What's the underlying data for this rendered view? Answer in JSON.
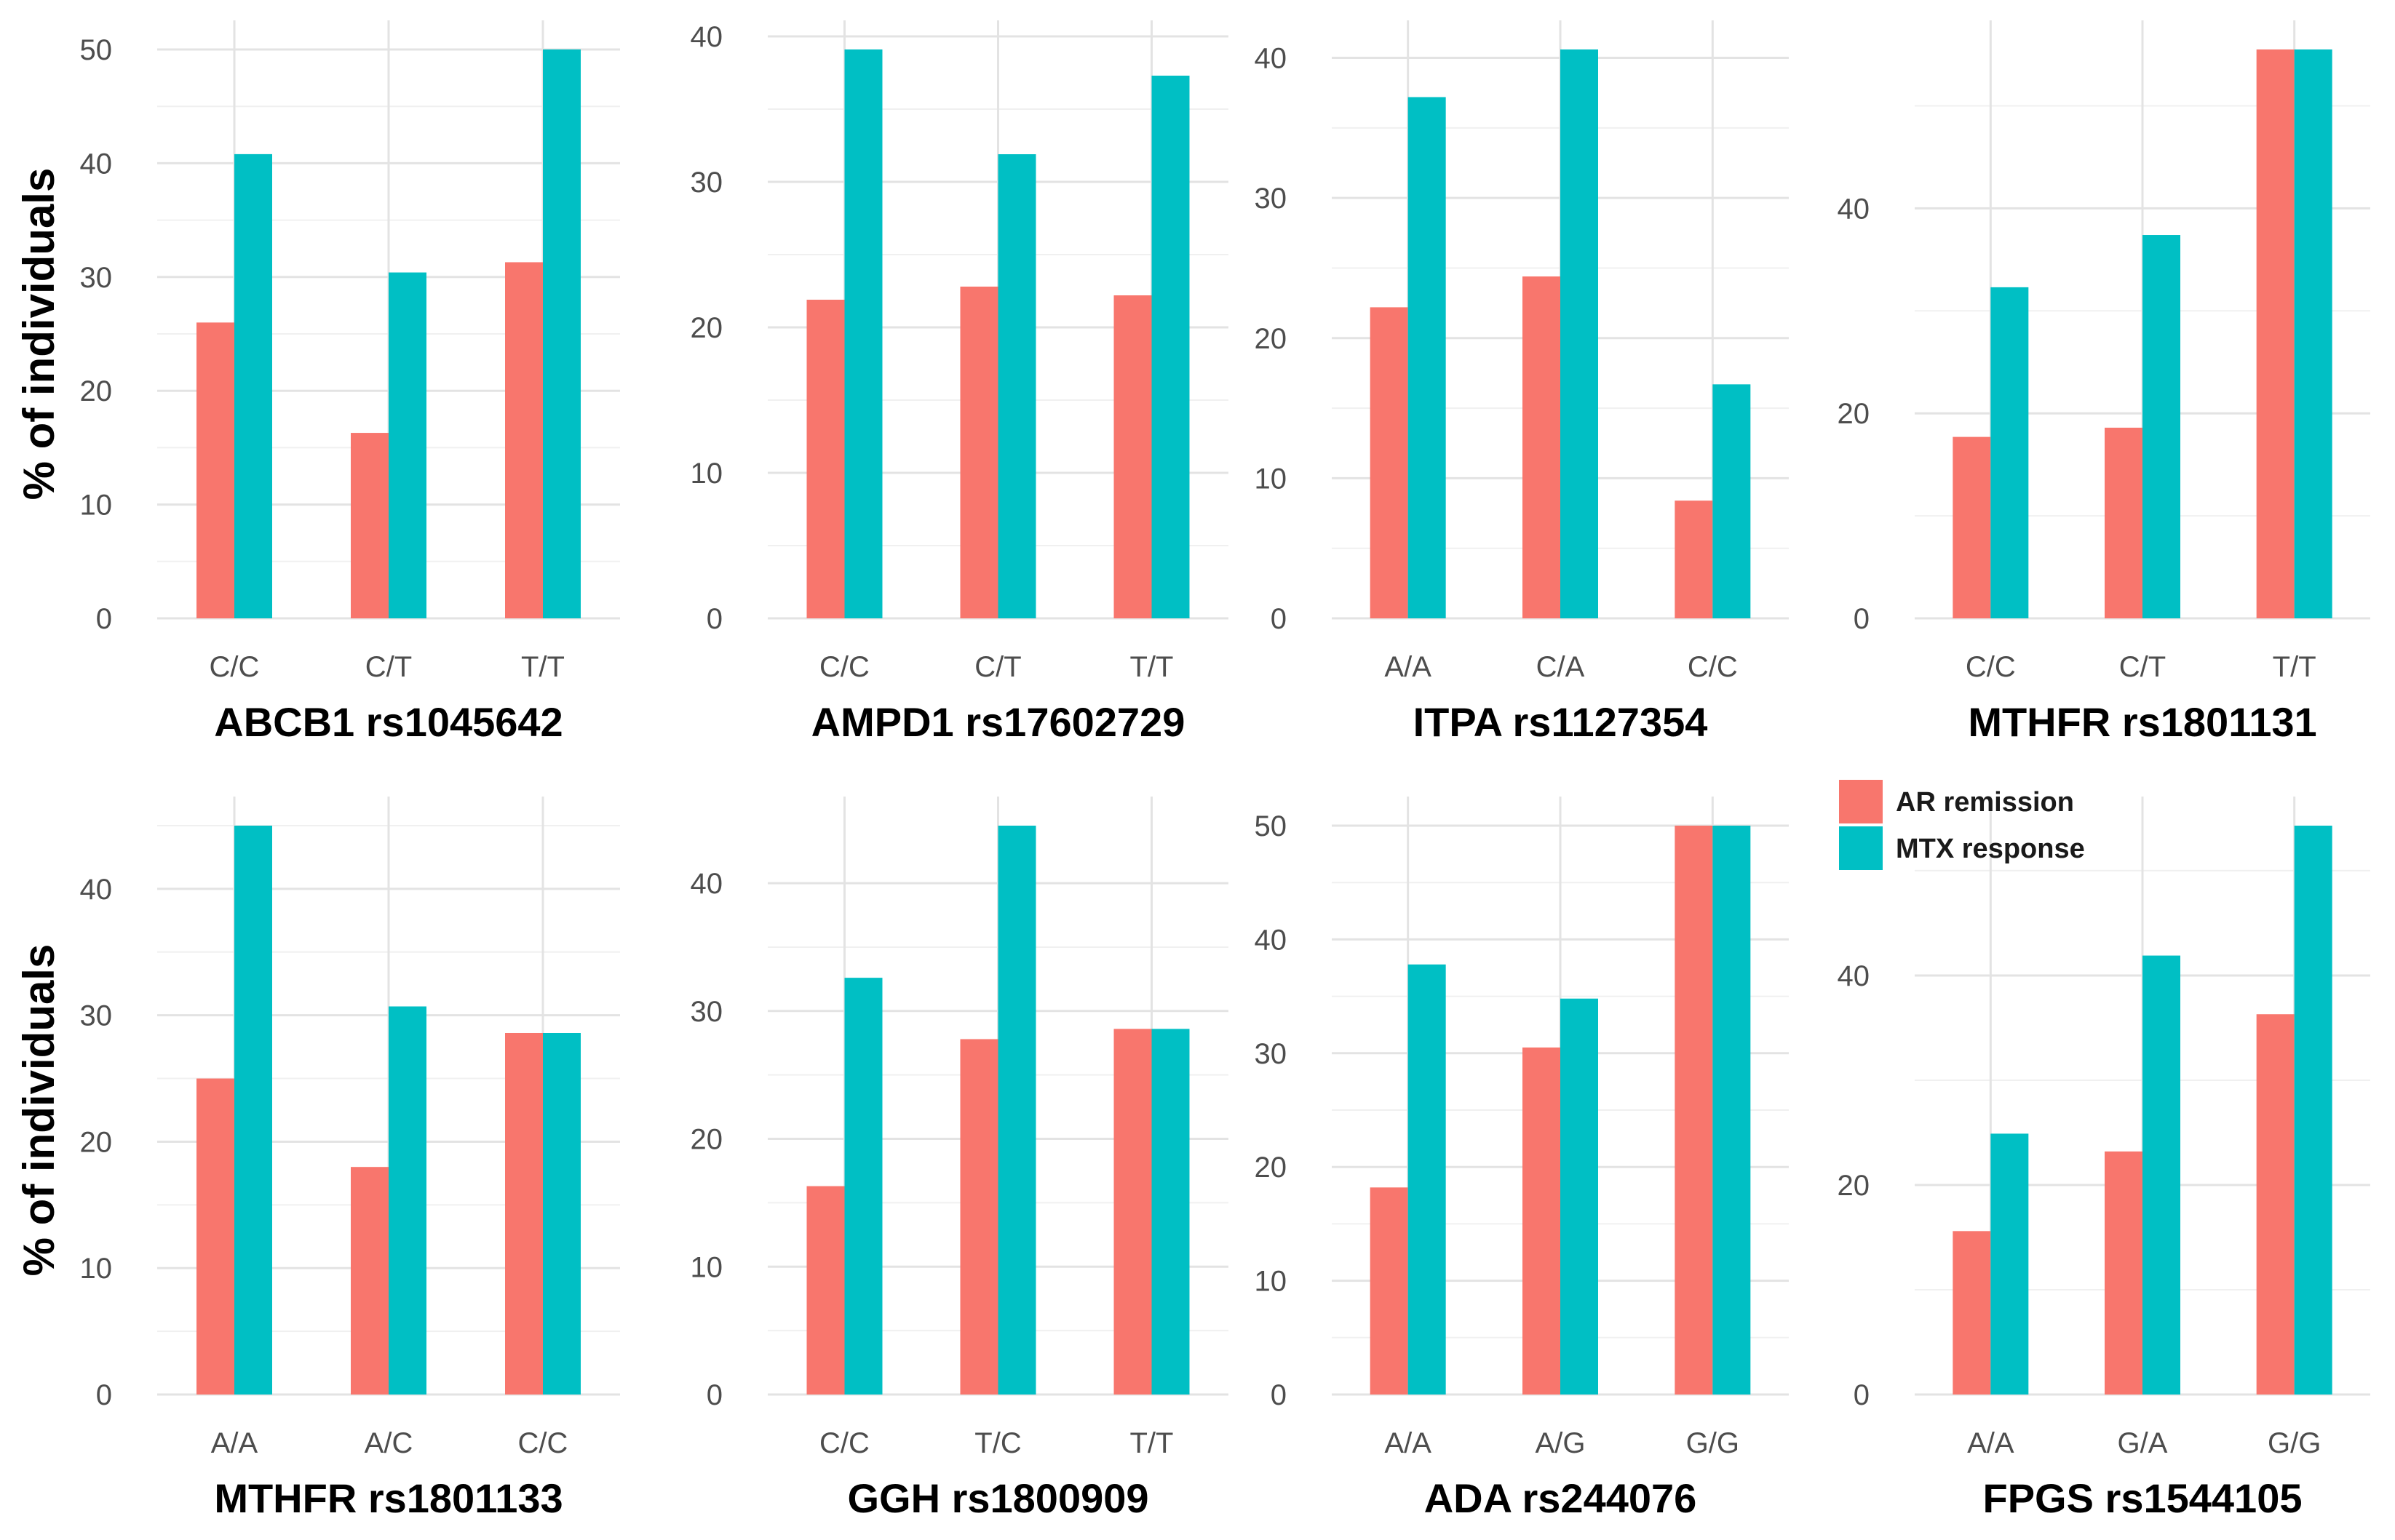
{
  "figure": {
    "ylabel": "% of individuals",
    "legend": [
      {
        "name": "AR remission",
        "color": "#F8766D"
      },
      {
        "name": "MTX response",
        "color": "#00BFC4"
      }
    ]
  },
  "chart_data": [
    {
      "type": "bar",
      "title": "ABCB1 rs1045642",
      "categories": [
        "C/C",
        "C/T",
        "T/T"
      ],
      "series": [
        {
          "name": "AR remission",
          "values": [
            26,
            16.3,
            31.3
          ]
        },
        {
          "name": "MTX response",
          "values": [
            40.8,
            30.4,
            50
          ]
        }
      ],
      "ylim": [
        0,
        50
      ],
      "yticks": [
        0,
        10,
        20,
        30,
        40,
        50
      ],
      "ylabel": "% of individuals"
    },
    {
      "type": "bar",
      "title": "AMPD1 rs17602729",
      "categories": [
        "C/C",
        "C/T",
        "T/T"
      ],
      "series": [
        {
          "name": "AR remission",
          "values": [
            21.9,
            22.8,
            22.2
          ]
        },
        {
          "name": "MTX response",
          "values": [
            39.1,
            31.9,
            37.3
          ]
        }
      ],
      "ylim": [
        0,
        39.1
      ],
      "yticks": [
        0,
        10,
        20,
        30,
        40
      ],
      "ylabel": ""
    },
    {
      "type": "bar",
      "title": "ITPA rs1127354",
      "categories": [
        "A/A",
        "C/A",
        "C/C"
      ],
      "series": [
        {
          "name": "AR remission",
          "values": [
            22.2,
            24.4,
            8.4
          ]
        },
        {
          "name": "MTX response",
          "values": [
            37.2,
            40.6,
            16.7
          ]
        }
      ],
      "ylim": [
        0,
        40.6
      ],
      "yticks": [
        0,
        10,
        20,
        30,
        40
      ],
      "ylabel": ""
    },
    {
      "type": "bar",
      "title": "MTHFR rs1801131",
      "categories": [
        "C/C",
        "C/T",
        "T/T"
      ],
      "series": [
        {
          "name": "AR remission",
          "values": [
            17.7,
            18.6,
            55.5
          ]
        },
        {
          "name": "MTX response",
          "values": [
            32.3,
            37.4,
            55.5
          ]
        }
      ],
      "ylim": [
        0,
        55.5
      ],
      "yticks": [
        0,
        20,
        40
      ],
      "ylabel": ""
    },
    {
      "type": "bar",
      "title": "MTHFR rs1801133",
      "categories": [
        "A/A",
        "A/C",
        "C/C"
      ],
      "series": [
        {
          "name": "AR remission",
          "values": [
            25,
            18,
            28.6
          ]
        },
        {
          "name": "MTX response",
          "values": [
            45,
            30.7,
            28.6
          ]
        }
      ],
      "ylim": [
        0,
        45
      ],
      "yticks": [
        0,
        10,
        20,
        30,
        40
      ],
      "ylabel": "% of individuals"
    },
    {
      "type": "bar",
      "title": "GGH rs1800909",
      "categories": [
        "C/C",
        "T/C",
        "T/T"
      ],
      "series": [
        {
          "name": "AR remission",
          "values": [
            16.3,
            27.8,
            28.6
          ]
        },
        {
          "name": "MTX response",
          "values": [
            32.6,
            44.5,
            28.6
          ]
        }
      ],
      "ylim": [
        0,
        44.5
      ],
      "yticks": [
        0,
        10,
        20,
        30,
        40
      ],
      "ylabel": ""
    },
    {
      "type": "bar",
      "title": "ADA rs244076",
      "categories": [
        "A/A",
        "A/G",
        "G/G"
      ],
      "series": [
        {
          "name": "AR remission",
          "values": [
            18.2,
            30.5,
            50
          ]
        },
        {
          "name": "MTX response",
          "values": [
            37.8,
            34.8,
            50
          ]
        }
      ],
      "ylim": [
        0,
        50
      ],
      "yticks": [
        0,
        10,
        20,
        30,
        40,
        50
      ],
      "ylabel": ""
    },
    {
      "type": "bar",
      "title": "FPGS rs1544105",
      "categories": [
        "A/A",
        "G/A",
        "G/G"
      ],
      "series": [
        {
          "name": "AR remission",
          "values": [
            15.6,
            23.2,
            36.3
          ]
        },
        {
          "name": "MTX response",
          "values": [
            24.9,
            41.9,
            54.3
          ]
        }
      ],
      "ylim": [
        0,
        54.3
      ],
      "yticks": [
        0,
        20,
        40
      ],
      "ylabel": ""
    }
  ]
}
